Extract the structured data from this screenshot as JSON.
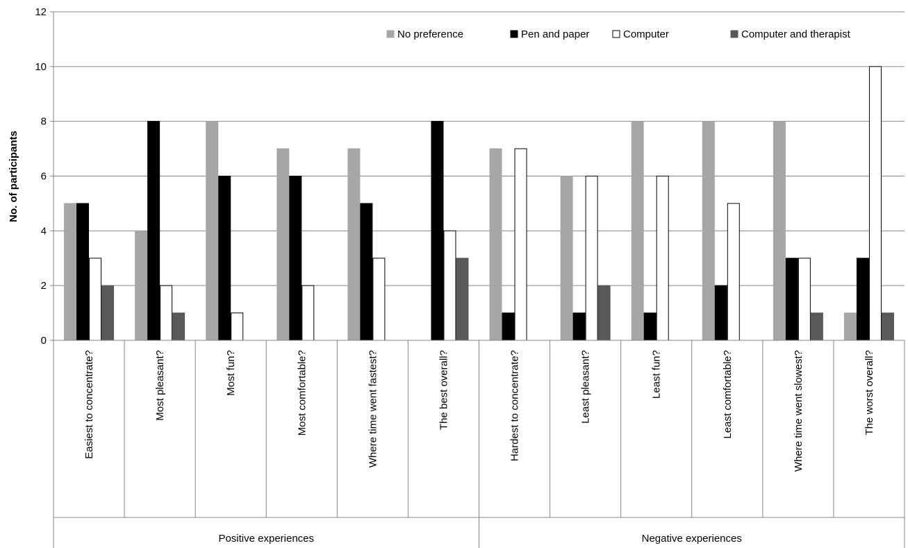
{
  "chart_data": {
    "type": "bar",
    "title": "",
    "xlabel": "",
    "ylabel": "No. of participants",
    "ylim": [
      0,
      12
    ],
    "yticks": [
      0,
      2,
      4,
      6,
      8,
      10,
      12
    ],
    "grid": true,
    "legend_position": "top-right",
    "categories": [
      "Easiest to concentrate?",
      "Most pleasant?",
      "Most fun?",
      "Most comfortable?",
      "Where time went fastest?",
      "The best overall?",
      "Hardest to concentrate?",
      "Least pleasant?",
      "Least fun?",
      "Least comfortable?",
      "Where time went slowest?",
      "The worst overall?"
    ],
    "category_groups": [
      {
        "label": "Positive experiences",
        "span": [
          0,
          5
        ]
      },
      {
        "label": "Negative experiences",
        "span": [
          6,
          11
        ]
      }
    ],
    "series": [
      {
        "name": "No preference",
        "color": "#a6a6a6",
        "values": [
          5,
          4,
          8,
          7,
          7,
          0,
          7,
          6,
          8,
          8,
          8,
          1
        ]
      },
      {
        "name": "Pen and paper",
        "color": "#000000",
        "values": [
          5,
          8,
          6,
          6,
          5,
          8,
          1,
          1,
          1,
          2,
          3,
          3
        ]
      },
      {
        "name": "Computer",
        "color": "#ffffff",
        "values": [
          3,
          2,
          1,
          2,
          3,
          4,
          7,
          6,
          6,
          5,
          3,
          10
        ]
      },
      {
        "name": "Computer and therapist",
        "color": "#595959",
        "values": [
          2,
          1,
          0,
          0,
          0,
          3,
          0,
          2,
          0,
          0,
          1,
          1
        ]
      }
    ]
  }
}
